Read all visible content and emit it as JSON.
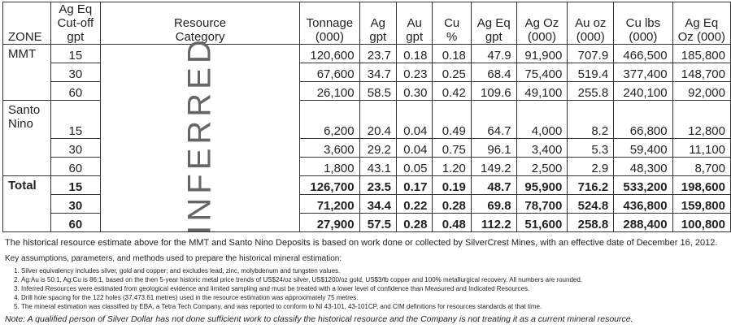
{
  "table": {
    "columns": [
      "ZONE",
      "Ag Eq\nCut-off gpt",
      "Resource\nCategory",
      "Tonnage\n(000)",
      "Ag\ngpt",
      "Au\ngpt",
      "Cu %",
      "Ag Eq\ngpt",
      "Ag Oz\n(000)",
      "Au oz\n(000)",
      "Cu lbs\n(000)",
      "Ag Eq\nOz (000)"
    ],
    "category": "INFERRED",
    "groups": [
      {
        "zone": "MMT",
        "rows": [
          [
            "15",
            "120,600",
            "23.7",
            "0.18",
            "0.18",
            "47.9",
            "91,900",
            "707.9",
            "466,500",
            "185,800"
          ],
          [
            "30",
            "67,600",
            "34.7",
            "0.23",
            "0.25",
            "68.4",
            "75,400",
            "519.4",
            "377,400",
            "148,700"
          ],
          [
            "60",
            "26,100",
            "58.5",
            "0.30",
            "0.42",
            "109.6",
            "49,100",
            "255.8",
            "240,100",
            "92,000"
          ]
        ]
      },
      {
        "zone": "Santo\nNino",
        "rows": [
          [
            "15",
            "6,200",
            "20.4",
            "0.04",
            "0.49",
            "64.7",
            "4,000",
            "8.2",
            "66,800",
            "12,800"
          ],
          [
            "30",
            "3,600",
            "29.2",
            "0.04",
            "0.75",
            "96.1",
            "3,400",
            "5.3",
            "59,400",
            "11,100"
          ],
          [
            "60",
            "1,800",
            "43.1",
            "0.05",
            "1.20",
            "149.2",
            "2,500",
            "2.9",
            "48,300",
            "8,700"
          ]
        ]
      },
      {
        "zone": "Total",
        "rows": [
          [
            "15",
            "126,700",
            "23.5",
            "0.17",
            "0.19",
            "48.7",
            "95,900",
            "716.2",
            "533,200",
            "198,600"
          ],
          [
            "30",
            "71,200",
            "34.4",
            "0.22",
            "0.28",
            "69.8",
            "78,700",
            "524.8",
            "436,800",
            "159,800"
          ],
          [
            "60",
            "27,900",
            "57.5",
            "0.28",
            "0.48",
            "112.2",
            "51,600",
            "258.8",
            "288,400",
            "100,800"
          ]
        ]
      }
    ]
  },
  "footer": {
    "paragraph": "The historical resource estimate above for the MMT and Santo Nino Deposits is based on work done or collected by SilverCrest Mines, with an effective date of December 16, 2012.",
    "intro": "Key assumptions, parameters, and methods used to prepare the historical mineral estimation:",
    "notes": [
      "Silver equivalency includes silver, gold and copper; and excludes lead, zinc, molybdenum and tungsten values.",
      "Ag:Au is 50:1, Ag:Cu is 86:1, based on the then 5-year historic metal price trends of US$24/oz silver, US$1200/oz gold, US$3/lb copper and 100% metallurgical recovery. All numbers are rounded.",
      "Inferred Resources were estimated from geological evidence and limited sampling and must be treated with a lower level of confidence than Measured and Indicated Resources.",
      "Drill hole spacing for the 122 holes (37,473.61 metres) used in the resource estimation was approximately 75 metres.",
      "The mineral estimation was classified by EBA, a Tetra Tech Company, and was reported to conform to NI 43-101, 43-101CP, and CIM definitions for resources standards at that time."
    ],
    "note": "Note: A qualified person of Silver Dollar has not done sufficient work to classify the historical resource and the Company is not treating it as a current mineral resource."
  }
}
